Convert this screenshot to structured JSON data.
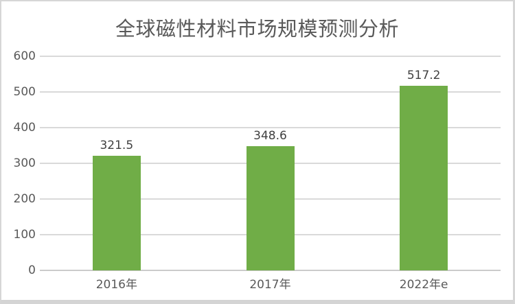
{
  "chart_data": {
    "type": "bar",
    "title": "全球磁性材料市场规模预测分析",
    "categories": [
      "2016年",
      "2017年",
      "2022年e"
    ],
    "values": [
      321.5,
      348.6,
      517.2
    ],
    "data_labels": [
      "321.5",
      "348.6",
      "517.2"
    ],
    "xlabel": "",
    "ylabel": "",
    "ylim": [
      0,
      600
    ],
    "yticks": [
      0,
      100,
      200,
      300,
      400,
      500,
      600
    ],
    "grid": true,
    "legend": false,
    "colors": {
      "bar": "#70AD47",
      "gridline": "#D9D9D9",
      "axis_line": "#CBCBCB",
      "title_text": "#595959",
      "tick_text": "#595959",
      "category_text": "#595959",
      "data_label_text": "#404040",
      "frame_border": "#D6D6D6",
      "background": "#FFFFFF"
    }
  }
}
